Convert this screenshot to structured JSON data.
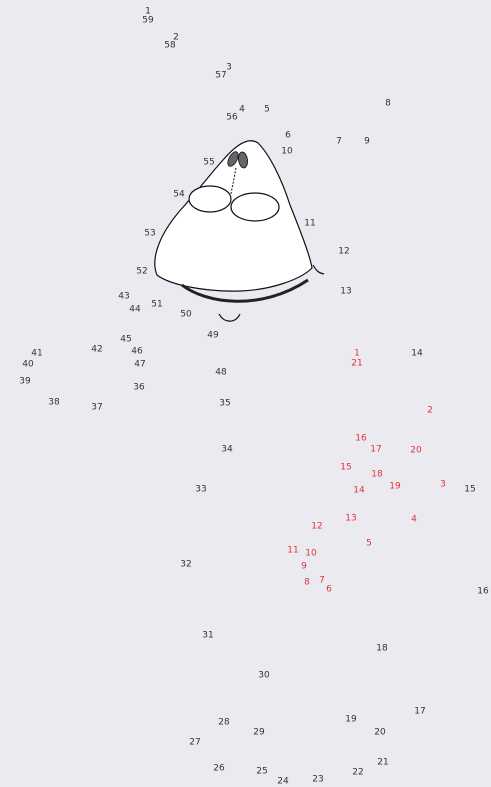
{
  "puzzle": {
    "title": "",
    "colors": {
      "background": "#ebeaf0",
      "black_sequence": "#333333",
      "red_sequence": "#e0333b",
      "drawing_stroke": "#111111",
      "drawing_fill": "#ffffff",
      "eye_fill": "#666666"
    },
    "black_numbers": [
      "1",
      "59",
      "2",
      "58",
      "3",
      "57",
      "4",
      "56",
      "5",
      "8",
      "6",
      "7",
      "9",
      "10",
      "55",
      "54",
      "11",
      "53",
      "12",
      "52",
      "13",
      "43",
      "51",
      "44",
      "50",
      "49",
      "45",
      "42",
      "46",
      "41",
      "40",
      "47",
      "48",
      "39",
      "36",
      "38",
      "37",
      "35",
      "34",
      "33",
      "32",
      "31",
      "30",
      "28",
      "29",
      "27",
      "26",
      "25",
      "24",
      "23",
      "22",
      "21",
      "20",
      "19",
      "18",
      "17",
      "16",
      "15",
      "14"
    ],
    "red_numbers": [
      "1",
      "21",
      "2",
      "16",
      "17",
      "20",
      "15",
      "18",
      "19",
      "14",
      "3",
      "13",
      "4",
      "12",
      "11",
      "10",
      "5",
      "9",
      "8",
      "7",
      "6"
    ]
  }
}
